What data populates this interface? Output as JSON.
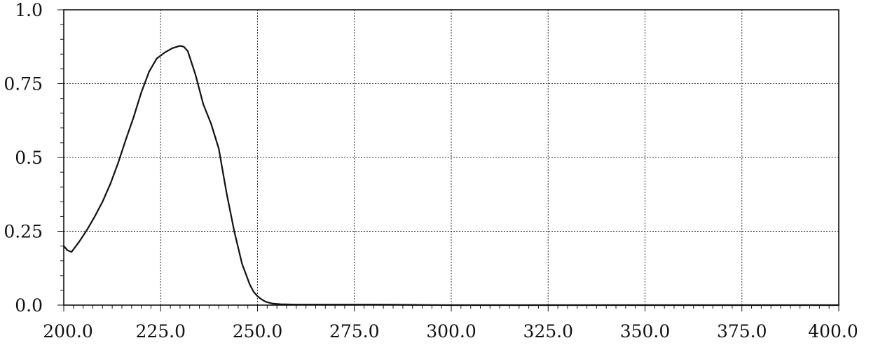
{
  "chart_data": {
    "type": "line",
    "title": "",
    "xlabel": "",
    "ylabel": "",
    "xlim": [
      200,
      400
    ],
    "ylim": [
      0,
      1
    ],
    "grid": true,
    "x_ticks": [
      200,
      225,
      250,
      275,
      300,
      325,
      350,
      375,
      400
    ],
    "x_tick_labels": [
      "200.0",
      "225.0",
      "250.0",
      "275.0",
      "300.0",
      "325.0",
      "350.0",
      "375.0",
      "400.0"
    ],
    "y_ticks": [
      0,
      0.25,
      0.5,
      0.75,
      1.0
    ],
    "y_tick_labels": [
      "0.0",
      "0.25",
      "0.5",
      "0.75",
      "1.0"
    ],
    "colors": {
      "line": "#111111",
      "grid": "#333333",
      "background": "#ffffff"
    },
    "series": [
      {
        "x": [
          200,
          201,
          202,
          204,
          206,
          208,
          210,
          212,
          214,
          216,
          218,
          220,
          222,
          224,
          226,
          228,
          230,
          231,
          232,
          233,
          234,
          236,
          238,
          240,
          242,
          244,
          246,
          248,
          249,
          250,
          251,
          252,
          253,
          254,
          256,
          260,
          265,
          270,
          275,
          280,
          285,
          290,
          295,
          300,
          305,
          310,
          320,
          340,
          360,
          380,
          400
        ],
        "y": [
          0.2,
          0.185,
          0.18,
          0.215,
          0.255,
          0.3,
          0.35,
          0.41,
          0.48,
          0.56,
          0.635,
          0.72,
          0.79,
          0.835,
          0.855,
          0.87,
          0.878,
          0.875,
          0.86,
          0.82,
          0.78,
          0.68,
          0.615,
          0.53,
          0.38,
          0.25,
          0.14,
          0.07,
          0.045,
          0.03,
          0.02,
          0.012,
          0.008,
          0.005,
          0.003,
          0.002,
          0.002,
          0.002,
          0.002,
          0.002,
          0.0015,
          0.001,
          0.0005,
          0.0,
          0.0,
          0.0,
          0.0,
          0.0,
          0.0,
          0.0,
          0.0
        ]
      }
    ]
  }
}
